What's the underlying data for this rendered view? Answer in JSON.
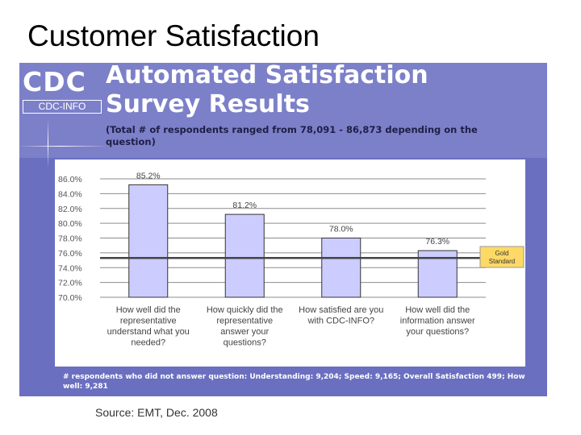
{
  "slide": {
    "title": "Customer Satisfaction",
    "source": "Source: EMT, Dec. 2008"
  },
  "panel": {
    "logo_main": "CDC",
    "logo_sub": "CDC-INFO",
    "heading_line1": "Automated Satisfaction",
    "heading_line2": "Survey Results",
    "subheading": "(Total # of respondents ranged from 78,091 - 86,873 depending on the question)",
    "footnote": "# respondents who did not answer question: Understanding: 9,204; Speed: 9,165; Overall Satisfaction 499; How well: 9,281",
    "colors": {
      "panel_bg": "#6b6fc0",
      "bar_fill": "#ccccff",
      "gold_box": "#ffd966"
    }
  },
  "chart_data": {
    "type": "bar",
    "categories": [
      [
        "How well did the",
        "representative",
        "understand what you",
        "needed?"
      ],
      [
        "How quickly did the",
        "representative",
        "answer your",
        "questions?"
      ],
      [
        "How satisfied are you",
        "with CDC-INFO?"
      ],
      [
        "How well did the",
        "information answer",
        "your questions?"
      ]
    ],
    "values": [
      85.2,
      81.2,
      78.0,
      76.3
    ],
    "value_labels": [
      "85.2%",
      "81.2%",
      "78.0%",
      "76.3%"
    ],
    "y_ticks": [
      70,
      72,
      74,
      76,
      78,
      80,
      82,
      84,
      86
    ],
    "y_tick_labels": [
      "70.0%",
      "72.0%",
      "74.0%",
      "76.0%",
      "78.0%",
      "80.0%",
      "82.0%",
      "84.0%",
      "86.0%"
    ],
    "ylim": [
      70,
      86
    ],
    "reference_line": {
      "value": 75.3,
      "label_line1": "Gold",
      "label_line2": "Standard"
    },
    "grid": true,
    "title": "",
    "xlabel": "",
    "ylabel": ""
  }
}
